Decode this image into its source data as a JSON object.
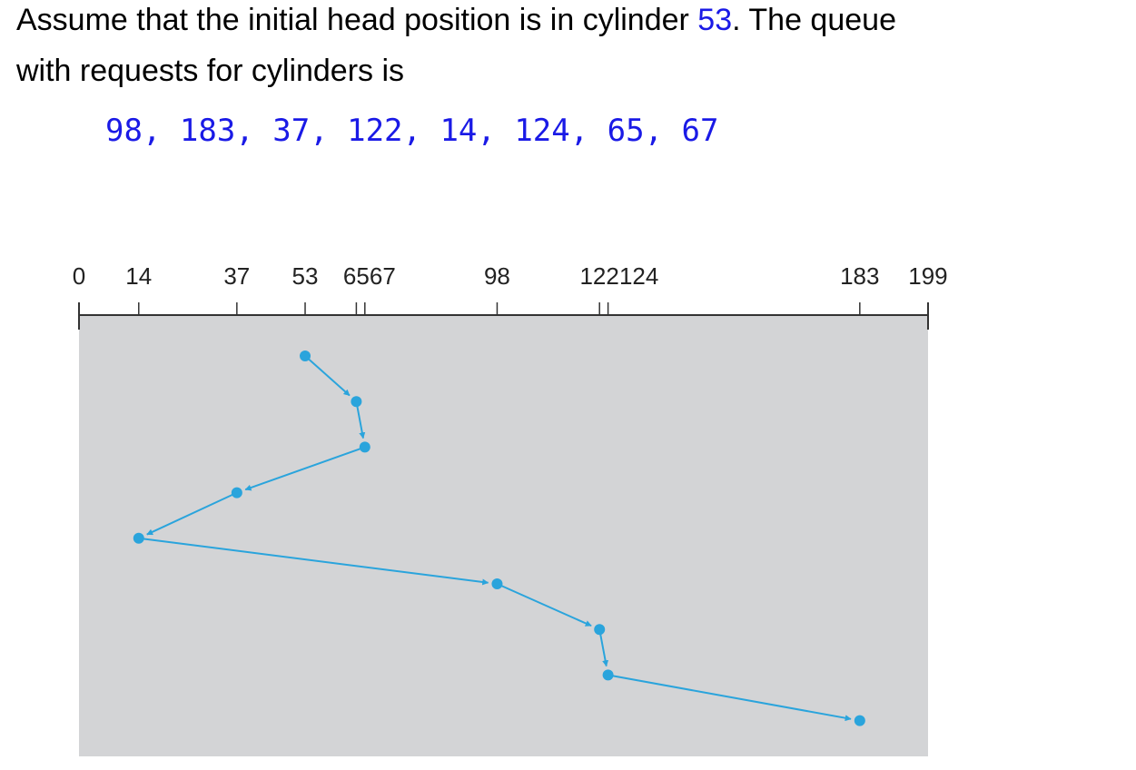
{
  "prose": {
    "line1_prefix": "Assume that the initial head position is in cylinder ",
    "head_value": "53",
    "line1_suffix": ". The queue",
    "line2": "with requests for cylinders is"
  },
  "queue_text": "98, 183, 37, 122, 14, 124, 65, 67",
  "colors": {
    "highlight": "#1a1ae6",
    "plot_background": "#d3d4d6",
    "path": "#2aa4dc",
    "axis": "#333333"
  },
  "chart_data": {
    "type": "line",
    "axis_range": [
      0,
      199
    ],
    "tick_labels": [
      {
        "value": 0,
        "label": "0"
      },
      {
        "value": 14,
        "label": "14"
      },
      {
        "value": 37,
        "label": "37"
      },
      {
        "value": 53,
        "label": "53"
      },
      {
        "value": 65,
        "label": "65"
      },
      {
        "value": 67,
        "label": "67"
      },
      {
        "value": 98,
        "label": "98"
      },
      {
        "value": 122,
        "label": "122"
      },
      {
        "value": 124,
        "label": "124"
      },
      {
        "value": 183,
        "label": "183"
      },
      {
        "value": 199,
        "label": "199"
      }
    ],
    "head_sequence": [
      53,
      65,
      67,
      37,
      14,
      98,
      122,
      124,
      183
    ]
  }
}
